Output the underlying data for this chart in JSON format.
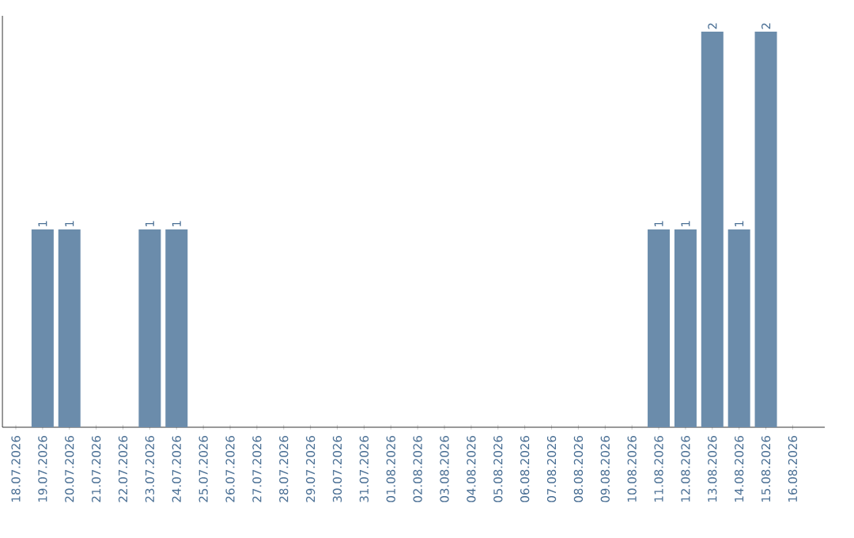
{
  "chart_data": {
    "type": "bar",
    "color": "#6b8cab",
    "categories": [
      "18.07.2026",
      "19.07.2026",
      "20.07.2026",
      "21.07.2026",
      "22.07.2026",
      "23.07.2026",
      "24.07.2026",
      "25.07.2026",
      "26.07.2026",
      "27.07.2026",
      "28.07.2026",
      "29.07.2026",
      "30.07.2026",
      "31.07.2026",
      "01.08.2026",
      "02.08.2026",
      "03.08.2026",
      "04.08.2026",
      "05.08.2026",
      "06.08.2026",
      "07.08.2026",
      "08.08.2026",
      "09.08.2026",
      "10.08.2026",
      "11.08.2026",
      "12.08.2026",
      "13.08.2026",
      "14.08.2026",
      "15.08.2026",
      "16.08.2026"
    ],
    "values": [
      0,
      1,
      1,
      0,
      0,
      1,
      1,
      0,
      0,
      0,
      0,
      0,
      0,
      0,
      0,
      0,
      0,
      0,
      0,
      0,
      0,
      0,
      0,
      0,
      1,
      1,
      2,
      1,
      2,
      0
    ],
    "value_labels": [
      null,
      "1",
      "1",
      null,
      null,
      "1",
      "1",
      null,
      null,
      null,
      null,
      null,
      null,
      null,
      null,
      null,
      null,
      null,
      null,
      null,
      null,
      null,
      null,
      null,
      "1",
      "1",
      "2",
      "1",
      "2",
      null
    ],
    "grid": false
  }
}
